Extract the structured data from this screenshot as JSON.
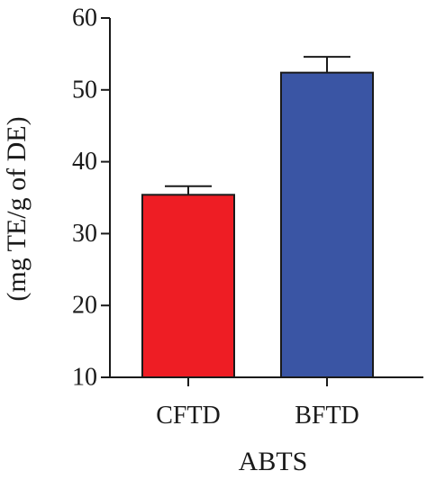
{
  "chart_data": {
    "type": "bar",
    "categories": [
      "CFTD",
      "BFTD"
    ],
    "values": [
      35.4,
      52.4
    ],
    "errors": [
      1.2,
      2.2
    ],
    "colors": [
      "#ee1d24",
      "#3a55a4"
    ],
    "xlabel": "ABTS",
    "ylabel": "(mg TE/g of DE)",
    "ylim": [
      10,
      60
    ],
    "yticks": [
      10,
      20,
      30,
      40,
      50,
      60
    ],
    "grid": false,
    "legend": "none"
  }
}
